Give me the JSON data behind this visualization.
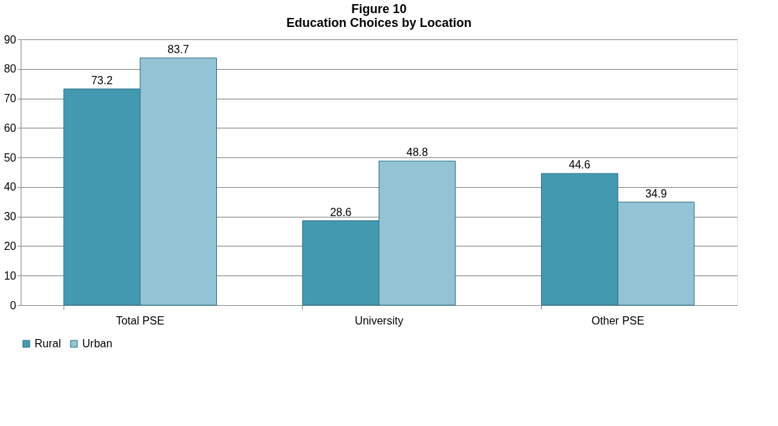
{
  "chart_data": {
    "type": "bar",
    "title": [
      "Figure 10",
      "Education Choices by Location"
    ],
    "categories": [
      "Total PSE",
      "University",
      "Other PSE"
    ],
    "series": [
      {
        "name": "Rural",
        "color": "#4399b0",
        "values": [
          73.2,
          28.6,
          44.6
        ]
      },
      {
        "name": "Urban",
        "color": "#93c3d5",
        "values": [
          83.7,
          48.8,
          34.9
        ]
      }
    ],
    "ylim": [
      0,
      90
    ],
    "yticks": [
      0,
      10,
      20,
      30,
      40,
      50,
      60,
      70,
      80,
      90
    ],
    "grid": "y",
    "legend": "bottom",
    "data_labels": true
  }
}
